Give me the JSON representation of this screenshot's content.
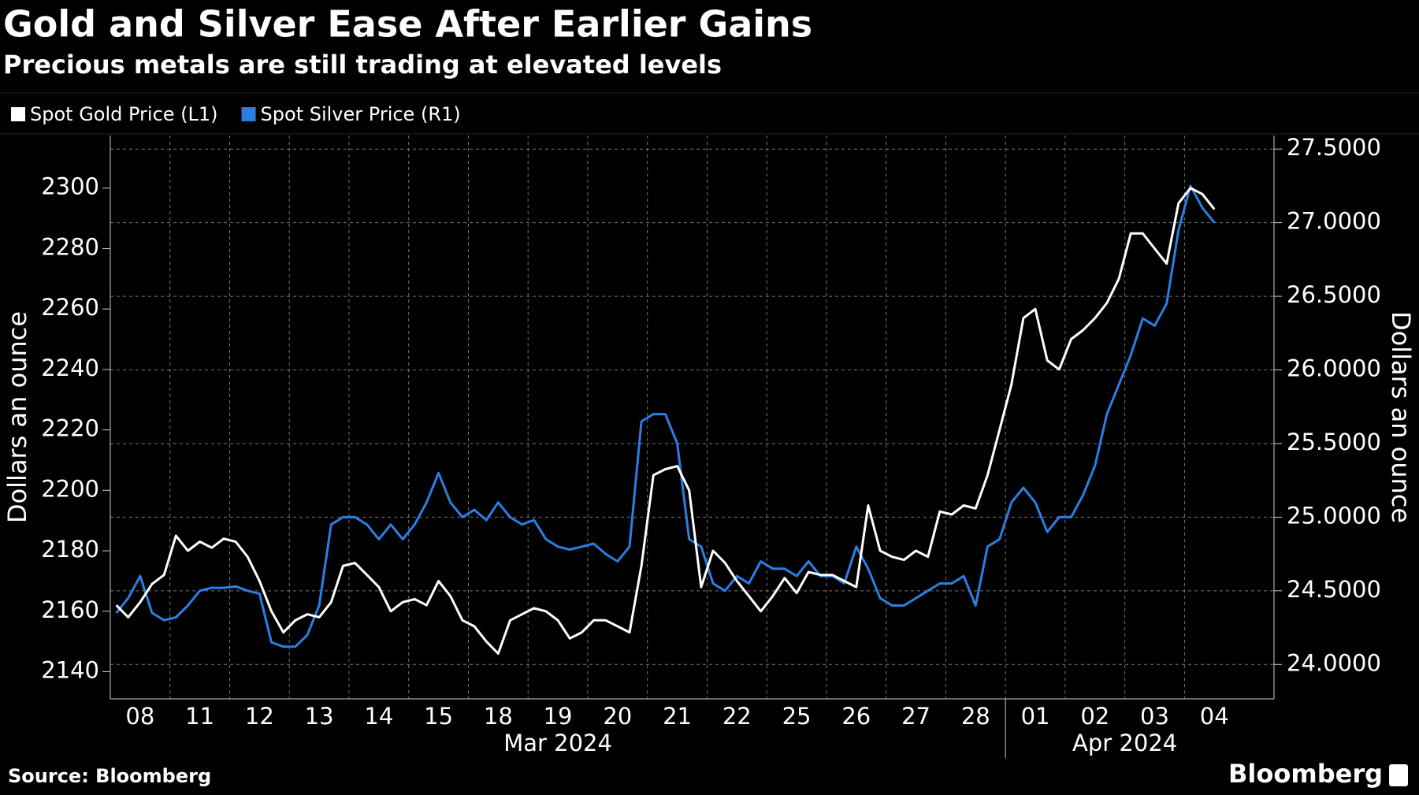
{
  "chart_data": {
    "type": "line",
    "title": "Gold and Silver Ease After Earlier Gains",
    "subtitle": "Precious metals are still trading at elevated levels",
    "ylabel": "Dollars an ounce",
    "y2label": "Dollars an ounce",
    "source": "Source: Bloomberg",
    "brand": "Bloomberg",
    "months": [
      "Mar 2024",
      "Apr 2024"
    ],
    "categories": [
      null,
      null,
      "08",
      null,
      null,
      null,
      null,
      "11",
      null,
      null,
      null,
      null,
      "12",
      null,
      null,
      null,
      null,
      "13",
      null,
      null,
      null,
      null,
      "14",
      null,
      null,
      null,
      null,
      "15",
      null,
      null,
      null,
      null,
      "18",
      null,
      null,
      null,
      null,
      "19",
      null,
      null,
      null,
      null,
      "20",
      null,
      null,
      null,
      null,
      "21",
      null,
      null,
      null,
      null,
      "22",
      null,
      null,
      null,
      null,
      "25",
      null,
      null,
      null,
      null,
      "26",
      null,
      null,
      null,
      null,
      "27",
      null,
      null,
      null,
      null,
      "28",
      null,
      null,
      null,
      null,
      "01",
      null,
      null,
      null,
      null,
      "02",
      null,
      null,
      null,
      null,
      "03",
      null,
      null,
      null,
      null,
      "04",
      null,
      null
    ],
    "series": [
      {
        "name": "Spot Gold Price (L1)",
        "color": "#ffffff",
        "values": [
          2162,
          2158,
          2163,
          2169,
          2172,
          2185,
          2180,
          2183,
          2181,
          2184,
          2183,
          2178,
          2170,
          2160,
          2153,
          2157,
          2159,
          2158,
          2163,
          2175,
          2176,
          2172,
          2168,
          2160,
          2163,
          2164,
          2162,
          2170,
          2165,
          2157,
          2155,
          2150,
          2146,
          2157,
          2159,
          2161,
          2160,
          2157,
          2151,
          2153,
          2157,
          2157,
          2155,
          2153,
          2175,
          2205,
          2207,
          2208,
          2200,
          2168,
          2180,
          2176,
          2170,
          2165,
          2160,
          2165,
          2171,
          2166,
          2173,
          2172,
          2172,
          2170,
          2168,
          2195,
          2180,
          2178,
          2177,
          2180,
          2178,
          2193,
          2192,
          2195,
          2194,
          2205,
          2220,
          2235,
          2257,
          2260,
          2243,
          2240,
          2250,
          2253,
          2257,
          2262,
          2270,
          2285,
          2285,
          2280,
          2275,
          2295,
          2300,
          2298,
          2293,
          null,
          null
        ]
      },
      {
        "name": "Spot Silver Price (R1)",
        "color": "#2b7fe3",
        "axis": "y2",
        "values": [
          24.35,
          24.45,
          24.6,
          24.35,
          24.3,
          24.32,
          24.4,
          24.5,
          24.52,
          24.52,
          24.53,
          24.5,
          24.48,
          24.15,
          24.12,
          24.12,
          24.2,
          24.4,
          24.95,
          25.0,
          25.0,
          24.95,
          24.85,
          24.95,
          24.85,
          24.95,
          25.1,
          25.3,
          25.1,
          25.0,
          25.05,
          24.98,
          25.1,
          25.0,
          24.95,
          24.98,
          24.85,
          24.8,
          24.78,
          24.8,
          24.82,
          24.75,
          24.7,
          24.8,
          25.65,
          25.7,
          25.7,
          25.5,
          24.85,
          24.8,
          24.55,
          24.5,
          24.6,
          24.55,
          24.7,
          24.65,
          24.65,
          24.6,
          24.7,
          24.6,
          24.6,
          24.55,
          24.8,
          24.65,
          24.45,
          24.4,
          24.4,
          24.45,
          24.5,
          24.55,
          24.55,
          24.6,
          24.4,
          24.8,
          24.85,
          25.1,
          25.2,
          25.1,
          24.9,
          25.0,
          25.0,
          25.15,
          25.35,
          25.7,
          25.9,
          26.1,
          26.35,
          26.3,
          26.45,
          26.95,
          27.25,
          27.1,
          27.0,
          null,
          null
        ]
      }
    ],
    "ylim": [
      2131,
      2317.4
    ],
    "yticks": [
      2140,
      2160,
      2180,
      2200,
      2220,
      2240,
      2260,
      2280,
      2300
    ],
    "y2lim": [
      23.766,
      27.592
    ],
    "y2ticks": [
      {
        "value": 24,
        "label": "24.0000"
      },
      {
        "value": 24.5,
        "label": "24.5000"
      },
      {
        "value": 25,
        "label": "25.0000"
      },
      {
        "value": 25.5,
        "label": "25.5000"
      },
      {
        "value": 26,
        "label": "26.0000"
      },
      {
        "value": 26.5,
        "label": "26.5000"
      },
      {
        "value": 27,
        "label": "27.0000"
      },
      {
        "value": 27.5,
        "label": "27.5000"
      }
    ],
    "grid": true
  }
}
